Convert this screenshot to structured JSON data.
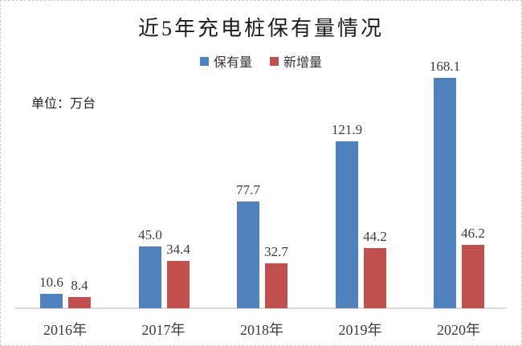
{
  "title": "近5年充电桩保有量情况",
  "unit_label": "单位：万台",
  "legend": [
    {
      "label": "保有量",
      "color": "#4f81bd"
    },
    {
      "label": "新增量",
      "color": "#c0504d"
    }
  ],
  "chart_data": {
    "type": "bar",
    "title": "近5年充电桩保有量情况",
    "unit": "单位：万台",
    "categories": [
      "2016年",
      "2017年",
      "2018年",
      "2019年",
      "2020年"
    ],
    "series": [
      {
        "name": "保有量",
        "color": "#4f81bd",
        "values": [
          10.6,
          45.0,
          77.7,
          121.9,
          168.1
        ]
      },
      {
        "name": "新增量",
        "color": "#c0504d",
        "values": [
          8.4,
          34.4,
          32.7,
          44.2,
          46.2
        ]
      }
    ],
    "ylabel": "单位：万台",
    "ylim": [
      0,
      180
    ],
    "grid": false,
    "legend_position": "top",
    "value_labels": true,
    "axis_color": "#dcdcdc",
    "value_label_format": "0.0"
  }
}
